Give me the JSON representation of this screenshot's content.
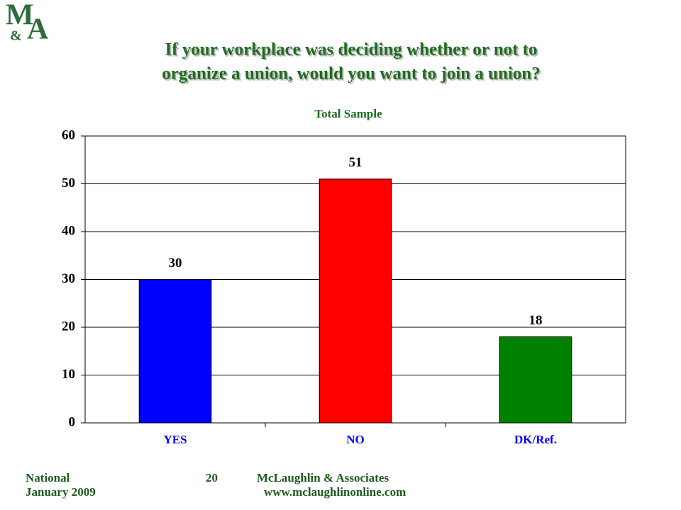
{
  "logo": {
    "letters": [
      "M",
      "&",
      "A"
    ]
  },
  "chart_data": {
    "type": "bar",
    "title": [
      "If your workplace was deciding whether or not to",
      "organize a union, would you want to join a union?"
    ],
    "subtitle": "Total Sample",
    "categories": [
      "YES",
      "NO",
      "DK/Ref."
    ],
    "values": [
      30,
      51,
      18
    ],
    "colors": [
      "#0000ff",
      "#ff0000",
      "#008000"
    ],
    "ylim": [
      0,
      60
    ],
    "yticks": [
      0,
      10,
      20,
      30,
      40,
      50,
      60
    ],
    "grid": true
  },
  "footer": {
    "left": [
      "National",
      "January 2009"
    ],
    "page": "20",
    "company": "McLaughlin & Associates",
    "url": "www.mclaughlinonline.com"
  }
}
